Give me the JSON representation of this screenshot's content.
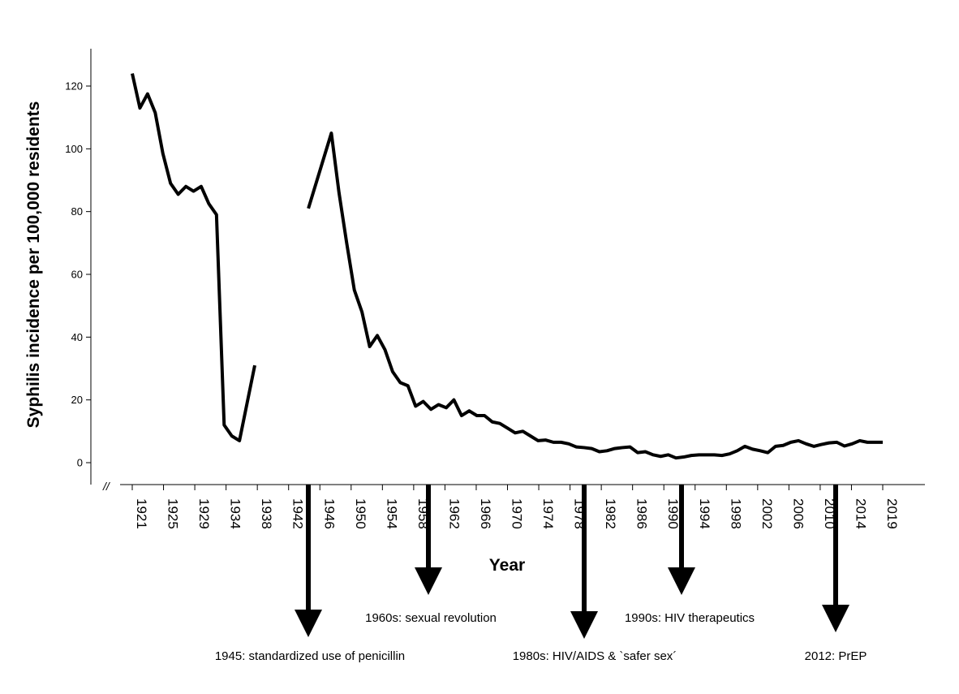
{
  "chart_data": {
    "type": "line",
    "title": "",
    "xlabel": "Year",
    "ylabel": "Syphilis incidence per 100,000 residents",
    "ylim": [
      0,
      130
    ],
    "y_ticks": [
      0,
      20,
      40,
      60,
      80,
      100,
      120
    ],
    "x_tick_labels": [
      "1921",
      "1925",
      "1929",
      "1934",
      "1938",
      "1942",
      "1946",
      "1950",
      "1954",
      "1958",
      "1962",
      "1966",
      "1970",
      "1974",
      "1978",
      "1982",
      "1986",
      "1990",
      "1994",
      "1998",
      "2002",
      "2006",
      "2010",
      "2014",
      "2019"
    ],
    "axis_break_symbol": "//",
    "series": [
      {
        "name": "Syphilis incidence",
        "segments": [
          {
            "x": [
              1921,
              1922,
              1923,
              1924,
              1925,
              1926,
              1927,
              1928,
              1929,
              1930,
              1931,
              1932,
              1933,
              1934,
              1935,
              1936,
              1937
            ],
            "y": [
              124,
              113,
              117.5,
              111.5,
              98.5,
              89,
              85.5,
              88,
              86.5,
              88,
              82.5,
              79,
              12,
              8.5,
              7,
              19,
              31
            ]
          },
          {
            "x": [
              1944,
              1947,
              1948,
              1949,
              1950,
              1951,
              1952,
              1953,
              1954,
              1955,
              1956,
              1957,
              1958,
              1959,
              1960,
              1961,
              1962,
              1963,
              1964,
              1965,
              1966,
              1967,
              1968,
              1969,
              1970,
              1971,
              1972,
              1973,
              1974,
              1975,
              1976,
              1977,
              1978,
              1979,
              1980,
              1981,
              1982,
              1983,
              1984,
              1985,
              1986,
              1987,
              1988,
              1989,
              1990,
              1991,
              1992,
              1993,
              1994,
              1995,
              1996,
              1997,
              1998,
              1999,
              2000,
              2001,
              2002,
              2003,
              2004,
              2005,
              2006,
              2007,
              2008,
              2009,
              2010,
              2011,
              2012,
              2013,
              2014,
              2015,
              2016,
              2017,
              2018,
              2019
            ],
            "y": [
              81,
              105,
              86,
              70,
              55,
              48,
              37,
              40.5,
              36,
              29,
              25.5,
              24.5,
              18,
              19.5,
              17,
              18.5,
              17.5,
              20,
              15,
              16.5,
              15,
              15,
              13,
              12.5,
              11,
              9.5,
              10,
              8.5,
              7,
              7.2,
              6.5,
              6.5,
              6,
              5,
              4.8,
              4.5,
              3.5,
              3.8,
              4.5,
              4.8,
              5,
              3.2,
              3.5,
              2.5,
              2,
              2.5,
              1.5,
              1.8,
              2.3,
              2.5,
              2.5,
              2.5,
              2.3,
              2.8,
              3.8,
              5.2,
              4.3,
              3.8,
              3.2,
              5.2,
              5.5,
              6.5,
              7,
              6,
              5.2,
              5.8,
              6.3,
              6.5,
              5.3,
              6,
              7,
              6.5,
              6.5,
              6.5
            ]
          }
        ]
      }
    ],
    "annotations": [
      {
        "text": "1945: standardized use of penicillin",
        "year": 1945
      },
      {
        "text": "1960s: sexual revolution",
        "year": 1960
      },
      {
        "text": "1980s: HIV/AIDS & `safer sex´",
        "year": 1980
      },
      {
        "text": "1990s: HIV therapeutics",
        "year": 1992
      },
      {
        "text": "2012: PrEP",
        "year": 2012
      }
    ]
  }
}
